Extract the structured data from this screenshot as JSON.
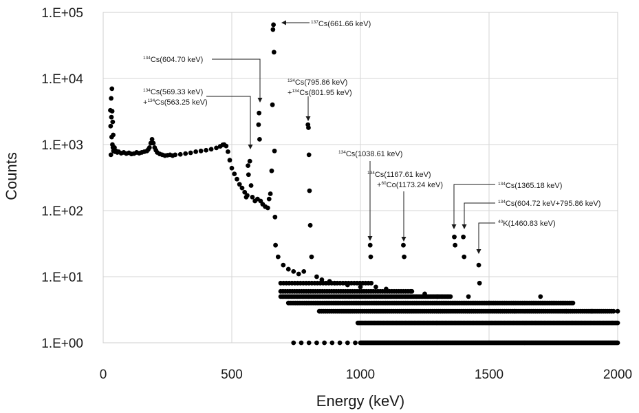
{
  "chart_data": {
    "type": "scatter",
    "title": "",
    "xlabel": "Energy (keV)",
    "ylabel": "Counts",
    "xlim": [
      0,
      2000
    ],
    "ylim": [
      1,
      100000
    ],
    "y_scale": "log",
    "x_ticks": [
      "0",
      "500",
      "1000",
      "1500",
      "2000"
    ],
    "y_ticks": [
      "1.E+00",
      "1.E+01",
      "1.E+02",
      "1.E+03",
      "1.E+04",
      "1.E+05"
    ],
    "grid": true,
    "legend": "none",
    "marker_color": "#000000",
    "series": [
      {
        "values_approx": "gamma-ray spectrum, counts per channel",
        "points": [
          [
            28,
            3300
          ],
          [
            29,
            1900
          ],
          [
            30,
            700
          ],
          [
            31,
            5000
          ],
          [
            32,
            2600
          ],
          [
            33,
            1300
          ],
          [
            34,
            7000
          ],
          [
            35,
            3200
          ],
          [
            36,
            1000
          ],
          [
            37,
            2200
          ],
          [
            38,
            900
          ],
          [
            39,
            1400
          ],
          [
            40,
            800
          ],
          [
            42,
            850
          ],
          [
            44,
            900
          ],
          [
            46,
            780
          ],
          [
            50,
            800
          ],
          [
            55,
            760
          ],
          [
            60,
            780
          ],
          [
            70,
            740
          ],
          [
            80,
            760
          ],
          [
            90,
            730
          ],
          [
            100,
            750
          ],
          [
            110,
            720
          ],
          [
            120,
            730
          ],
          [
            130,
            760
          ],
          [
            140,
            740
          ],
          [
            150,
            760
          ],
          [
            160,
            780
          ],
          [
            170,
            800
          ],
          [
            175,
            840
          ],
          [
            180,
            900
          ],
          [
            185,
            1050
          ],
          [
            190,
            1200
          ],
          [
            195,
            1050
          ],
          [
            200,
            900
          ],
          [
            205,
            820
          ],
          [
            210,
            760
          ],
          [
            220,
            720
          ],
          [
            230,
            700
          ],
          [
            240,
            680
          ],
          [
            250,
            690
          ],
          [
            260,
            700
          ],
          [
            270,
            680
          ],
          [
            280,
            700
          ],
          [
            300,
            710
          ],
          [
            320,
            730
          ],
          [
            340,
            750
          ],
          [
            360,
            780
          ],
          [
            380,
            800
          ],
          [
            400,
            820
          ],
          [
            420,
            850
          ],
          [
            440,
            890
          ],
          [
            455,
            940
          ],
          [
            465,
            990
          ],
          [
            470,
            1000
          ],
          [
            478,
            950
          ],
          [
            485,
            780
          ],
          [
            492,
            580
          ],
          [
            500,
            440
          ],
          [
            510,
            360
          ],
          [
            520,
            300
          ],
          [
            530,
            250
          ],
          [
            540,
            220
          ],
          [
            550,
            190
          ],
          [
            556,
            160
          ],
          [
            560,
            170
          ],
          [
            563,
            480
          ],
          [
            565,
            350
          ],
          [
            570,
            560
          ],
          [
            575,
            240
          ],
          [
            580,
            160
          ],
          [
            590,
            140
          ],
          [
            600,
            150
          ],
          [
            604,
            2000
          ],
          [
            606,
            3000
          ],
          [
            608,
            1200
          ],
          [
            612,
            140
          ],
          [
            620,
            125
          ],
          [
            630,
            115
          ],
          [
            640,
            110
          ],
          [
            645,
            150
          ],
          [
            650,
            180
          ],
          [
            655,
            400
          ],
          [
            658,
            4000
          ],
          [
            660,
            55000
          ],
          [
            662,
            65000
          ],
          [
            664,
            25000
          ],
          [
            666,
            800
          ],
          [
            668,
            80
          ],
          [
            670,
            30
          ],
          [
            680,
            20
          ],
          [
            700,
            15
          ],
          [
            720,
            13
          ],
          [
            740,
            12
          ],
          [
            760,
            11
          ],
          [
            780,
            12
          ],
          [
            796,
            2000
          ],
          [
            798,
            1800
          ],
          [
            800,
            700
          ],
          [
            802,
            200
          ],
          [
            805,
            60
          ],
          [
            810,
            20
          ],
          [
            830,
            10
          ],
          [
            850,
            9
          ],
          [
            880,
            8.5
          ],
          [
            900,
            8
          ],
          [
            950,
            7.5
          ],
          [
            1000,
            7
          ],
          [
            1038,
            30
          ],
          [
            1040,
            20
          ],
          [
            1060,
            7
          ],
          [
            1100,
            6.5
          ],
          [
            1167,
            30
          ],
          [
            1170,
            20
          ],
          [
            1200,
            6
          ],
          [
            1250,
            5.5
          ],
          [
            1300,
            5
          ],
          [
            1365,
            40
          ],
          [
            1368,
            30
          ],
          [
            1400,
            40
          ],
          [
            1403,
            20
          ],
          [
            1420,
            5
          ],
          [
            1460,
            15
          ],
          [
            1463,
            8
          ],
          [
            1500,
            4
          ],
          [
            1600,
            3
          ],
          [
            1700,
            5
          ],
          [
            1800,
            3
          ],
          [
            1900,
            3
          ],
          [
            2000,
            3
          ]
        ]
      }
    ],
    "annotations": [
      {
        "sup": "137",
        "text": "Cs(661.66 keV)"
      },
      {
        "sup": "134",
        "text": "Cs(604.70 keV)"
      },
      {
        "sup": "134",
        "text": "Cs(569.33 keV)"
      },
      {
        "prefix": "+",
        "sup": "134",
        "text": "Cs(563.25 keV)"
      },
      {
        "sup": "134",
        "text": "Cs(795.86 keV)"
      },
      {
        "prefix": "+",
        "sup": "134",
        "text": "Cs(801.95 keV)"
      },
      {
        "sup": "134",
        "text": "Cs(1038.61 keV)"
      },
      {
        "sup": "134",
        "text": "Cs(1167.61 keV)"
      },
      {
        "prefix": "+",
        "sup": "60",
        "text": "Co(1173.24 keV)"
      },
      {
        "sup": "134",
        "text": "Cs(1365.18 keV)"
      },
      {
        "sup": "134",
        "text": "Cs(604.72 keV+795.86 keV)"
      },
      {
        "sup": "40",
        "text": "K(1460.83 keV)"
      }
    ]
  }
}
